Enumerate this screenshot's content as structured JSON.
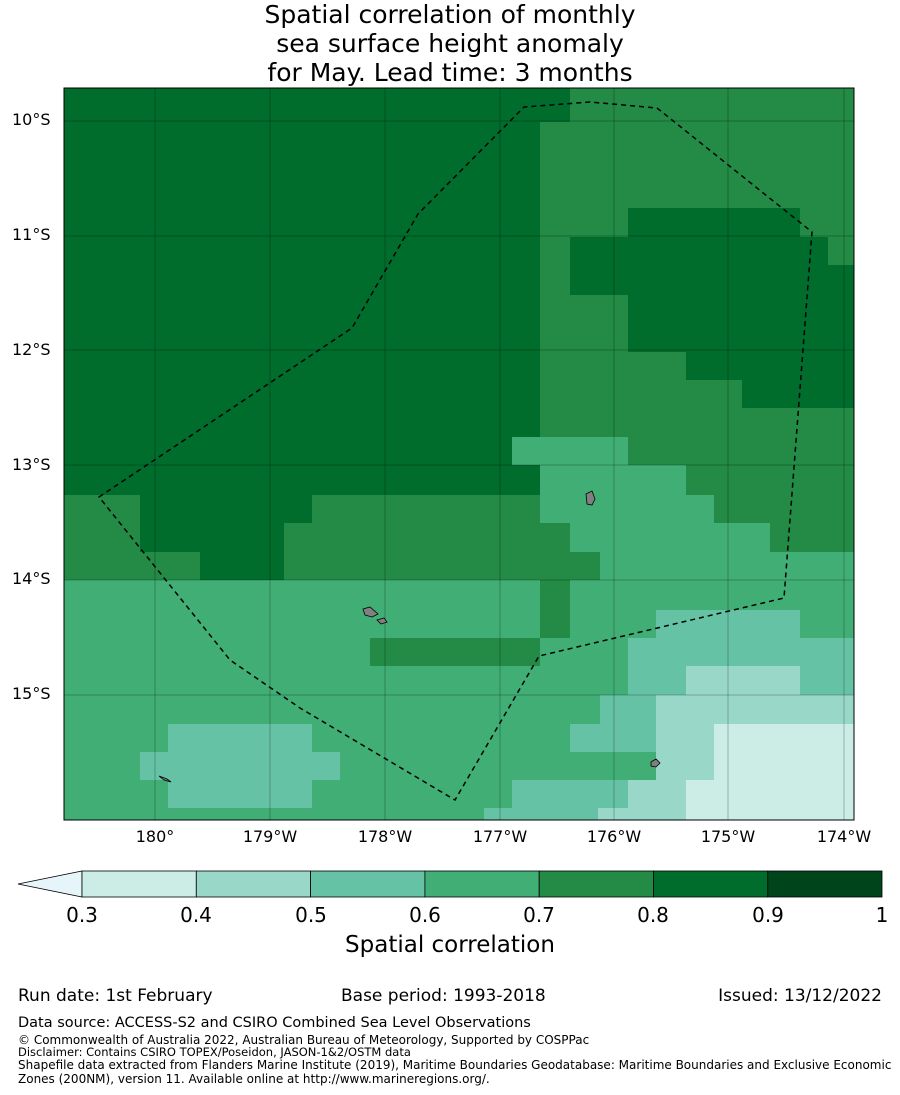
{
  "title": {
    "line1": "Spatial correlation of monthly",
    "line2": "sea surface height anomaly",
    "line3": "for May. Lead time: 3 months"
  },
  "map": {
    "lat_labels": [
      "10°S",
      "11°S",
      "12°S",
      "13°S",
      "14°S",
      "15°S"
    ],
    "lon_labels": [
      "180°",
      "179°W",
      "178°W",
      "177°W",
      "176°W",
      "175°W",
      "174°W"
    ],
    "colors": {
      "0.3-0.4": "#ccece6",
      "0.4-0.5": "#99d8c9",
      "0.5-0.6": "#66c2a4",
      "0.6-0.7": "#41ae76",
      "0.7-0.8": "#238b45",
      "0.8-0.9": "#006d2c",
      "0.9-1": "#00441b",
      "below": "#e5f5f9",
      "land": "#808080"
    }
  },
  "colorbar": {
    "ticks": [
      "0.3",
      "0.4",
      "0.5",
      "0.6",
      "0.7",
      "0.8",
      "0.9",
      "1"
    ],
    "label": "Spatial correlation"
  },
  "footer": {
    "run_date": "Run date: 1st February",
    "base_period": "Base period: 1993-2018",
    "issued": "Issued: 13/12/2022",
    "data_source": "Data source: ACCESS-S2 and CSIRO Combined Sea Level Observations",
    "copyright": "© Commonwealth of Australia 2022, Australian Bureau of Meteorology, Supported by COSPPac",
    "disclaimer": "Disclaimer: Contains CSIRO TOPEX/Poseidon, JASON-1&2/OSTM data",
    "shapefile_line1": "Shapefile data extracted from Flanders Marine Institute (2019), Maritime Boundaries Geodatabase: Maritime Boundaries and Exclusive Economic",
    "shapefile_line2": "Zones (200NM), version 11. Available online at http://www.marineregions.org/."
  }
}
